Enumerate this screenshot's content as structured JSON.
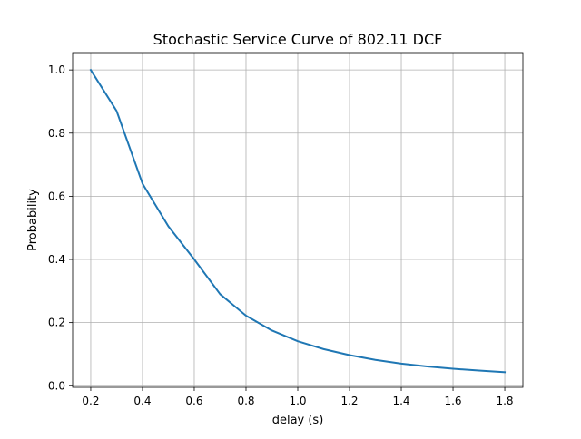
{
  "chart_data": {
    "type": "line",
    "title": "Stochastic Service Curve of 802.11 DCF",
    "xlabel": "delay (s)",
    "ylabel": "Probability",
    "xlim": [
      0.13,
      1.87
    ],
    "ylim": [
      -0.005,
      1.055
    ],
    "xticks": [
      0.2,
      0.4,
      0.6,
      0.8,
      1.0,
      1.2,
      1.4,
      1.6,
      1.8
    ],
    "xtick_labels": [
      "0.2",
      "0.4",
      "0.6",
      "0.8",
      "1.0",
      "1.2",
      "1.4",
      "1.6",
      "1.8"
    ],
    "yticks": [
      0.0,
      0.2,
      0.4,
      0.6,
      0.8,
      1.0
    ],
    "ytick_labels": [
      "0.0",
      "0.2",
      "0.4",
      "0.6",
      "0.8",
      "1.0"
    ],
    "grid": true,
    "series": [
      {
        "color": "#1f77b4",
        "x": [
          0.2,
          0.3,
          0.4,
          0.5,
          0.6,
          0.7,
          0.8,
          0.9,
          1.0,
          1.1,
          1.2,
          1.3,
          1.4,
          1.5,
          1.6,
          1.7,
          1.8
        ],
        "y": [
          1.0,
          0.87,
          0.64,
          0.505,
          0.4,
          0.29,
          0.222,
          0.175,
          0.141,
          0.116,
          0.097,
          0.082,
          0.07,
          0.061,
          0.054,
          0.048,
          0.043
        ]
      }
    ]
  }
}
